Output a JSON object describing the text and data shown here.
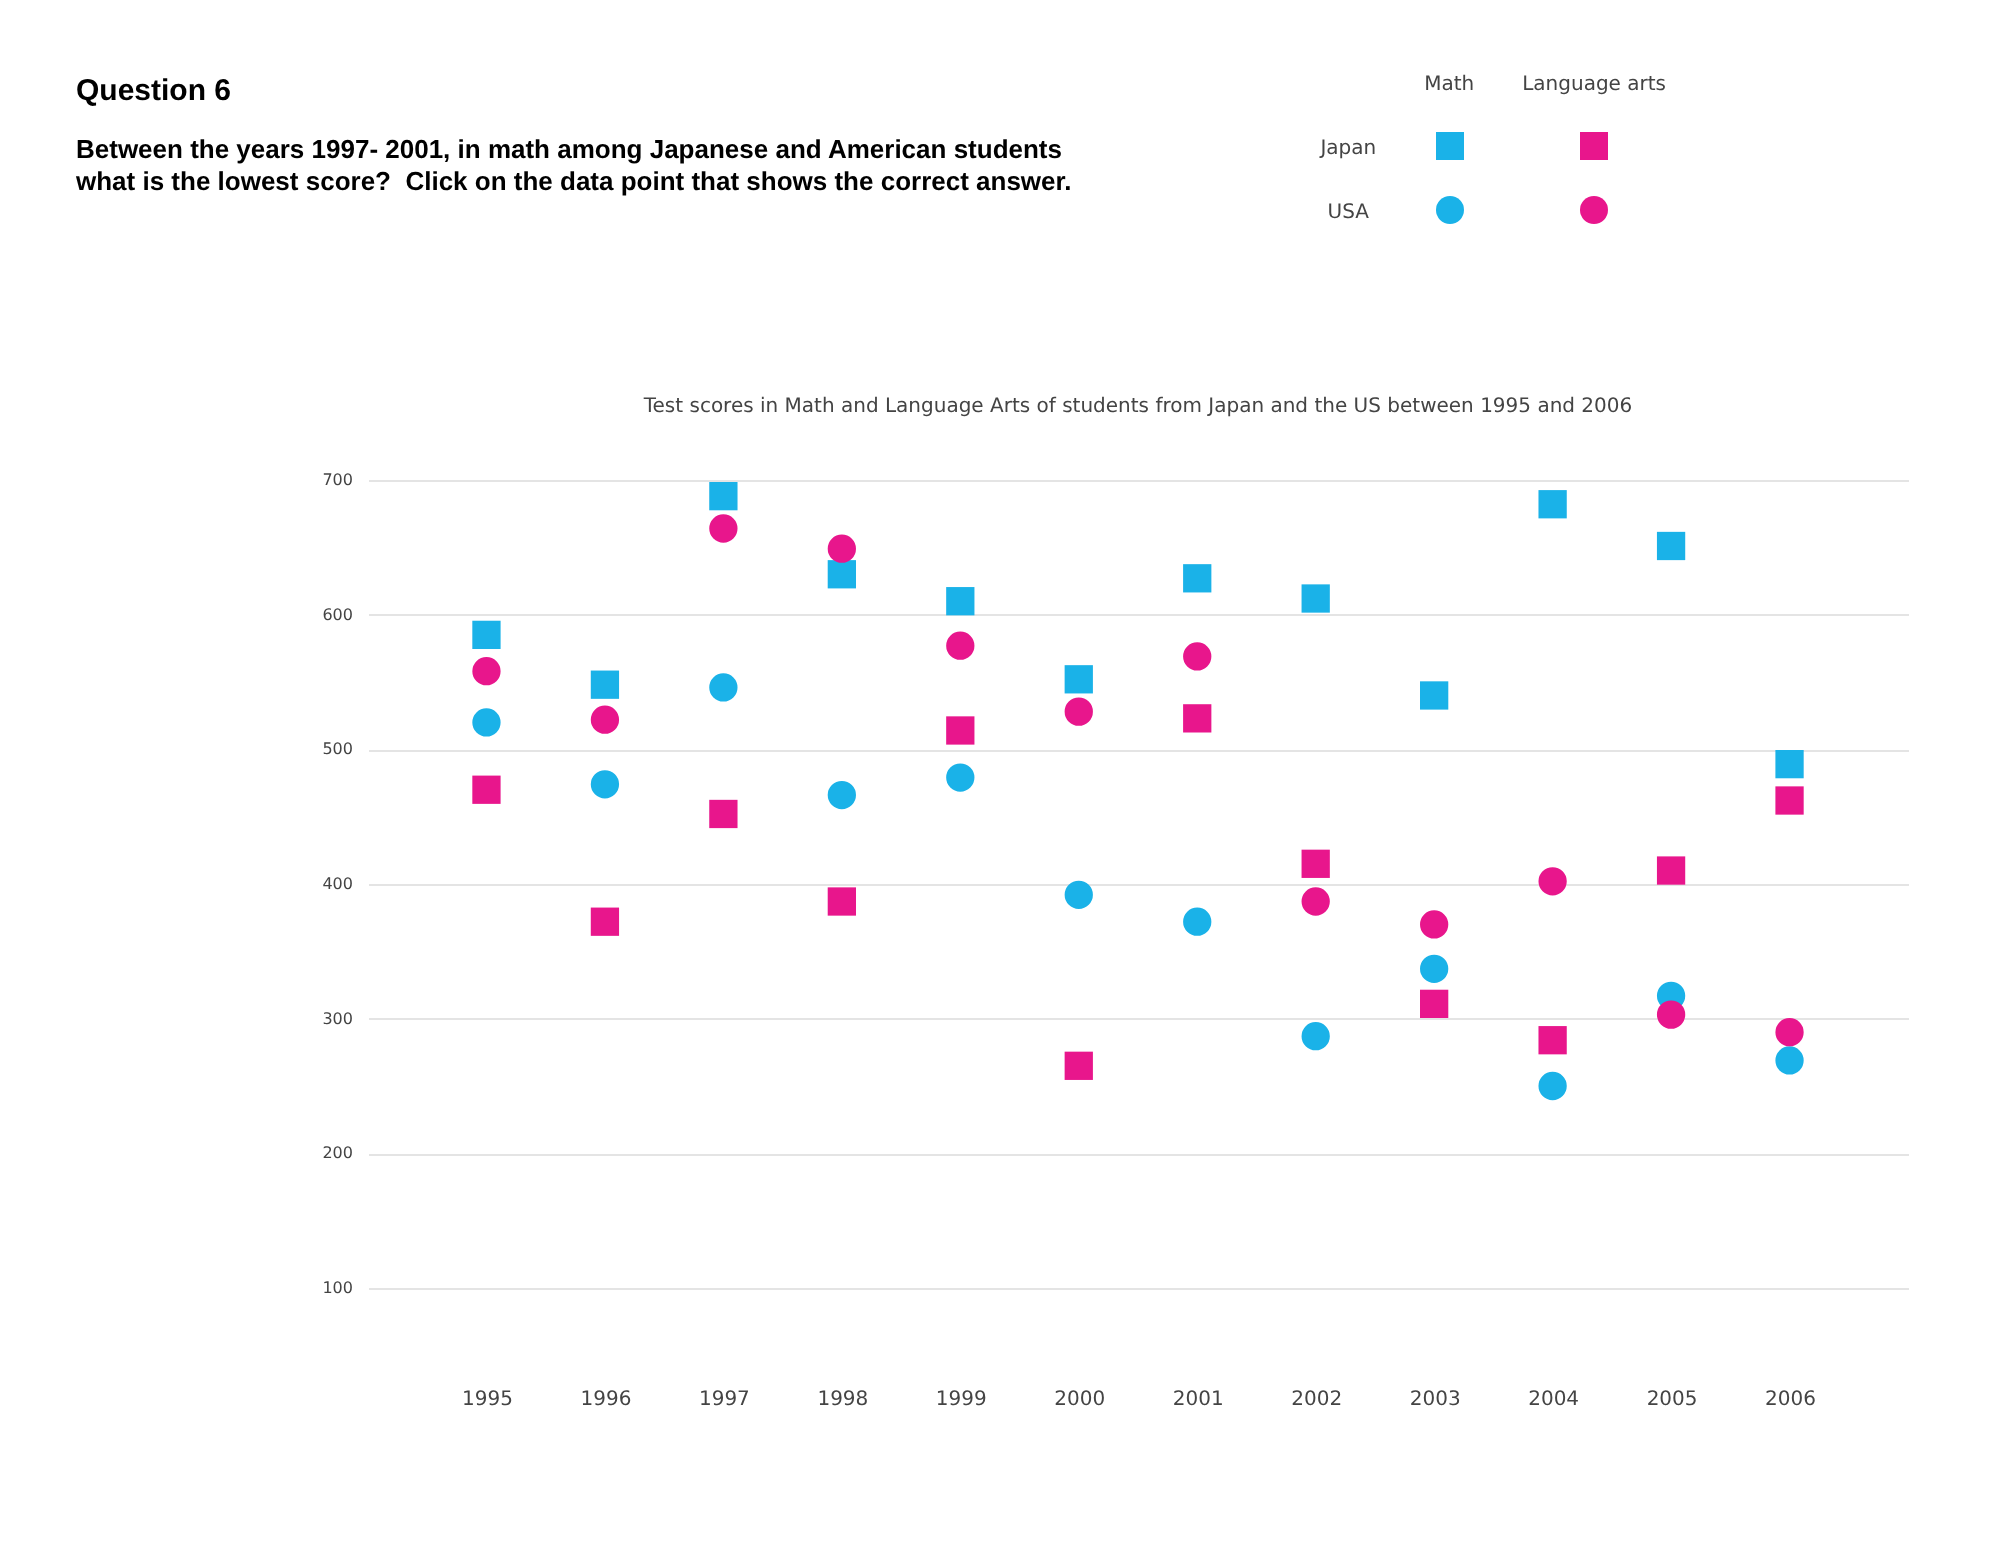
{
  "chart_data": {
    "type": "scatter",
    "title": "Test scores in Math and Language Arts of students from Japan and the US between 1995 and 2006",
    "annotations": [
      "Question 6",
      "Between the years 1997- 2001, in math among Japanese and American students\nwhat is the lowest score?  Click on the data point that shows the correct answer.",
      "Math",
      "Language arts",
      "Japan",
      "USA"
    ],
    "categories": [
      "1995",
      "1996",
      "1997",
      "1998",
      "1999",
      "2000",
      "2001",
      "2002",
      "2003",
      "2004",
      "2005",
      "2006"
    ],
    "series": [
      {
        "color": "#1ab2e8",
        "marker": "square",
        "values": [
          585,
          548,
          688,
          630,
          610,
          552,
          627,
          612,
          540,
          682,
          651,
          489
        ]
      },
      {
        "color": "#e8168c",
        "marker": "square",
        "values": [
          470,
          372,
          452,
          387,
          514,
          265,
          523,
          415,
          311,
          284,
          410,
          462
        ]
      },
      {
        "color": "#1ab2e8",
        "marker": "circle",
        "values": [
          520,
          474,
          546,
          466,
          479,
          392,
          372,
          287,
          337,
          250,
          317,
          269
        ]
      },
      {
        "color": "#e8168c",
        "marker": "circle",
        "values": [
          558,
          522,
          664,
          649,
          577,
          528,
          569,
          387,
          370,
          402,
          303,
          290
        ]
      }
    ],
    "ylim": [
      100,
      700
    ],
    "yticks": [
      100,
      200,
      300,
      400,
      500,
      600,
      700
    ],
    "grid": "y"
  }
}
